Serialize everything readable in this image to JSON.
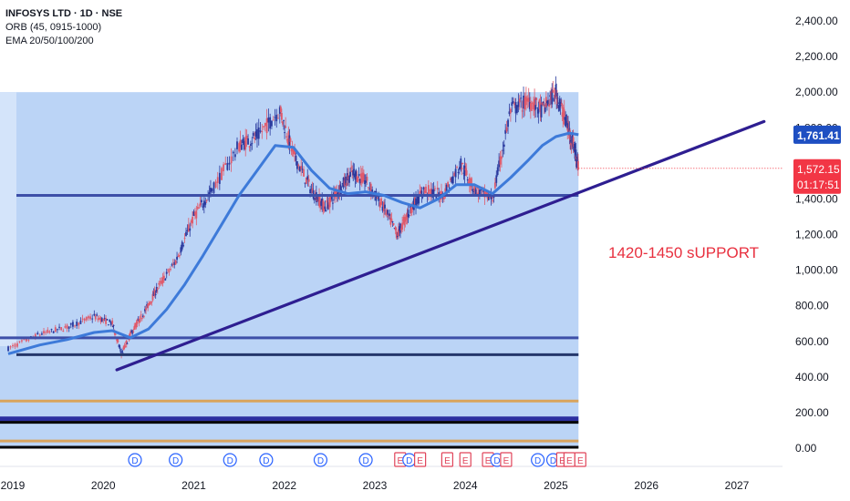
{
  "header": {
    "symbol_line": "INFOSYS LTD · 1D · NSE",
    "indicator_1": "ORB (45, 0915-1000)",
    "indicator_2": "EMA 20/50/100/200"
  },
  "annotation": {
    "text": "1420-1450 sUPPORT",
    "color": "#e8303f"
  },
  "price_labels": {
    "ema": {
      "value": "1,761.41",
      "color": "#1e4fc2"
    },
    "last": {
      "value": "1,572.15",
      "color": "#f23645"
    },
    "countdown": "01:17:51"
  },
  "colors": {
    "range_box": "#b7d2f6",
    "range_box_left": "#d4e4fa",
    "ema_line": "#3d7ad9",
    "trend_line": "#2e1e91",
    "level_line": "#3d4fa8",
    "orange_line": "#d9a35c",
    "bar_up": "#2a3a9e",
    "bar_down": "#e05a6b"
  },
  "chart_data": {
    "type": "line",
    "title": "INFOSYS LTD · 1D · NSE",
    "y_ticks": [
      "2,400.00",
      "2,200.00",
      "2,000.00",
      "1,800.00",
      "1,600.00",
      "1,400.00",
      "1,200.00",
      "1,000.00",
      "800.00",
      "600.00",
      "400.00",
      "200.00",
      "0.00"
    ],
    "y_tick_values": [
      2400,
      2200,
      2000,
      1800,
      1600,
      1400,
      1200,
      1000,
      800,
      600,
      400,
      200,
      0
    ],
    "x_ticks": [
      "2019",
      "2020",
      "2021",
      "2022",
      "2023",
      "2024",
      "2025",
      "2026",
      "2027"
    ],
    "ylim": [
      0,
      2400
    ],
    "price_series": {
      "name": "INFOSYS LTD",
      "x": [
        2018.95,
        2019.3,
        2019.6,
        2019.9,
        2020.1,
        2020.2,
        2020.3,
        2020.45,
        2020.6,
        2020.8,
        2021.0,
        2021.2,
        2021.5,
        2021.7,
        2021.95,
        2022.1,
        2022.3,
        2022.45,
        2022.6,
        2022.75,
        2022.9,
        2023.1,
        2023.25,
        2023.4,
        2023.55,
        2023.75,
        2023.95,
        2024.1,
        2024.3,
        2024.5,
        2024.7,
        2024.85,
        2025.0,
        2025.1,
        2025.2,
        2025.25
      ],
      "y": [
        560,
        640,
        680,
        740,
        700,
        530,
        640,
        760,
        900,
        1050,
        1300,
        1450,
        1700,
        1750,
        1900,
        1650,
        1450,
        1350,
        1450,
        1550,
        1500,
        1350,
        1200,
        1350,
        1450,
        1420,
        1600,
        1450,
        1400,
        1900,
        1950,
        1900,
        2000,
        1850,
        1700,
        1572
      ]
    },
    "ema_series": {
      "name": "EMA",
      "x": [
        2018.95,
        2019.3,
        2019.6,
        2019.9,
        2020.1,
        2020.3,
        2020.5,
        2020.7,
        2020.9,
        2021.1,
        2021.3,
        2021.5,
        2021.7,
        2021.9,
        2022.1,
        2022.3,
        2022.5,
        2022.7,
        2022.9,
        2023.1,
        2023.3,
        2023.5,
        2023.7,
        2023.9,
        2024.1,
        2024.3,
        2024.5,
        2024.7,
        2024.85,
        2025.0,
        2025.15,
        2025.25
      ],
      "y": [
        530,
        580,
        610,
        650,
        660,
        620,
        670,
        780,
        920,
        1080,
        1250,
        1420,
        1560,
        1700,
        1690,
        1560,
        1460,
        1430,
        1440,
        1420,
        1380,
        1350,
        1400,
        1480,
        1480,
        1430,
        1520,
        1620,
        1700,
        1750,
        1770,
        1761
      ]
    },
    "horizontal_levels": [
      1420,
      620,
      525,
      265,
      165,
      145,
      40
    ],
    "trend_line": {
      "start": [
        2020.15,
        440
      ],
      "end": [
        2027.3,
        1835
      ]
    },
    "range_box": {
      "x_start": 2018.8,
      "x_end": 2025.25,
      "y_low": 0,
      "y_high": 2000
    },
    "events": [
      {
        "x": 2020.35,
        "label": "D"
      },
      {
        "x": 2020.8,
        "label": "D"
      },
      {
        "x": 2021.4,
        "label": "D"
      },
      {
        "x": 2021.8,
        "label": "D"
      },
      {
        "x": 2022.4,
        "label": "D"
      },
      {
        "x": 2022.9,
        "label": "D"
      },
      {
        "x": 2023.28,
        "label": "E"
      },
      {
        "x": 2023.38,
        "label": "D"
      },
      {
        "x": 2023.5,
        "label": "E"
      },
      {
        "x": 2023.8,
        "label": "E"
      },
      {
        "x": 2024.0,
        "label": "E"
      },
      {
        "x": 2024.25,
        "label": "E"
      },
      {
        "x": 2024.35,
        "label": "D"
      },
      {
        "x": 2024.45,
        "label": "E"
      },
      {
        "x": 2024.8,
        "label": "D"
      },
      {
        "x": 2024.97,
        "label": "D"
      },
      {
        "x": 2025.07,
        "label": "E"
      },
      {
        "x": 2025.15,
        "label": "E"
      },
      {
        "x": 2025.27,
        "label": "E"
      }
    ]
  }
}
